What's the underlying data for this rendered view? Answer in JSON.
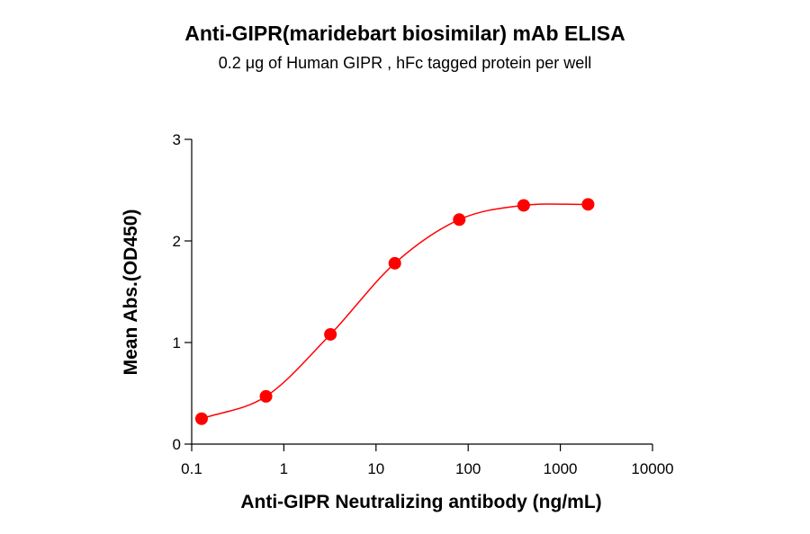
{
  "chart_data": {
    "type": "scatter",
    "title": "Anti-GIPR(maridebart biosimilar) mAb ELISA",
    "subtitle": "0.2 μg of Human GIPR , hFc tagged protein per well",
    "xlabel": "Anti-GIPR Neutralizing antibody (ng/mL)",
    "ylabel": "Mean Abs.(OD450)",
    "x_scale": "log",
    "xlim": [
      0.1,
      10000
    ],
    "ylim": [
      0,
      3
    ],
    "x_ticks": [
      "0.1",
      "1",
      "10",
      "100",
      "1000",
      "10000"
    ],
    "y_ticks": [
      "0",
      "1",
      "2",
      "3"
    ],
    "grid": false,
    "legend": "none",
    "series": [
      {
        "x": [
          0.128,
          0.64,
          3.2,
          16,
          80,
          400,
          2000
        ],
        "y": [
          0.25,
          0.47,
          1.08,
          1.78,
          2.21,
          2.35,
          2.36
        ],
        "color": "#ff0000",
        "fit_curve": "sigmoidal"
      }
    ]
  }
}
